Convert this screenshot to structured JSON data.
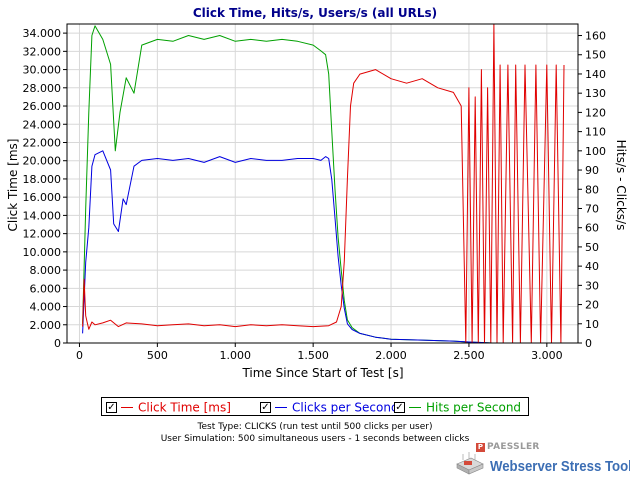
{
  "chart_data": {
    "type": "line",
    "title": "Click Time, Hits/s, Users/s (all URLs)",
    "xlabel": "Time Since Start of Test [s]",
    "ylabel_left": "Click Time [ms]",
    "ylabel_right": "Hits/s - Clicks/s",
    "xlim": [
      -80,
      3200
    ],
    "ylim_left": [
      0,
      35000
    ],
    "ylim_right": [
      0,
      166
    ],
    "x_ticks": [
      0,
      500,
      1000,
      1500,
      2000,
      2500,
      3000
    ],
    "x_tick_labels": [
      "0",
      "500",
      "1.000",
      "1.500",
      "2.000",
      "2.500",
      "3.000"
    ],
    "y_left_ticks": [
      0,
      2000,
      4000,
      6000,
      8000,
      10000,
      12000,
      14000,
      16000,
      18000,
      20000,
      22000,
      24000,
      26000,
      28000,
      30000,
      32000,
      34000
    ],
    "y_left_tick_labels": [
      "0",
      "2.000",
      "4.000",
      "6.000",
      "8.000",
      "10.000",
      "12.000",
      "14.000",
      "16.000",
      "18.000",
      "20.000",
      "22.000",
      "24.000",
      "26.000",
      "28.000",
      "30.000",
      "32.000",
      "34.000"
    ],
    "y_right_ticks": [
      0,
      10,
      20,
      30,
      40,
      50,
      60,
      70,
      80,
      90,
      100,
      110,
      120,
      130,
      140,
      150,
      160
    ],
    "y_right_tick_labels": [
      "0",
      "10",
      "20",
      "30",
      "40",
      "50",
      "60",
      "70",
      "80",
      "90",
      "100",
      "110",
      "120",
      "130",
      "140",
      "150",
      "160"
    ],
    "grid": true,
    "legend_position": "bottom",
    "series": [
      {
        "name": "Click Time [ms]",
        "axis": "left",
        "color": "#e00000",
        "x": [
          20,
          30,
          40,
          50,
          60,
          80,
          100,
          150,
          200,
          250,
          300,
          400,
          500,
          600,
          700,
          800,
          900,
          1000,
          1100,
          1200,
          1300,
          1400,
          1500,
          1600,
          1650,
          1680,
          1700,
          1720,
          1740,
          1760,
          1800,
          1900,
          2000,
          2100,
          2200,
          2300,
          2400,
          2450,
          2480,
          2500,
          2520,
          2540,
          2560,
          2580,
          2600,
          2620,
          2640,
          2660,
          2680,
          2700,
          2720,
          2750,
          2780,
          2800,
          2830,
          2860,
          2900,
          2930,
          2960,
          3000,
          3030,
          3060,
          3090,
          3110
        ],
        "values": [
          1800,
          7000,
          3000,
          2200,
          1500,
          2300,
          2000,
          2200,
          2500,
          1800,
          2200,
          2100,
          1900,
          2000,
          2100,
          1900,
          2000,
          1800,
          2000,
          1900,
          2000,
          1900,
          1800,
          1900,
          2300,
          4000,
          9000,
          18000,
          26000,
          28500,
          29500,
          30000,
          29000,
          28500,
          29000,
          28000,
          27500,
          26000,
          0,
          28000,
          0,
          27000,
          0,
          30000,
          0,
          28000,
          0,
          35000,
          0,
          30500,
          0,
          30500,
          0,
          30500,
          0,
          30500,
          0,
          30500,
          0,
          30500,
          0,
          30500,
          0,
          30500
        ]
      },
      {
        "name": "Clicks per Second",
        "axis": "right",
        "color": "#0000e0",
        "x": [
          20,
          40,
          60,
          80,
          100,
          150,
          200,
          220,
          250,
          280,
          300,
          350,
          400,
          500,
          600,
          700,
          800,
          900,
          1000,
          1100,
          1200,
          1300,
          1400,
          1500,
          1550,
          1580,
          1600,
          1620,
          1640,
          1660,
          1680,
          1700,
          1720,
          1750,
          1800,
          1900,
          2000,
          2200,
          2400,
          2500,
          2600,
          2650
        ],
        "values": [
          5,
          42,
          60,
          92,
          98,
          100,
          90,
          62,
          58,
          75,
          72,
          92,
          95,
          96,
          95,
          96,
          94,
          97,
          94,
          96,
          95,
          95,
          96,
          96,
          95,
          97,
          96,
          85,
          65,
          45,
          30,
          18,
          10,
          7,
          5,
          3,
          2,
          1.5,
          1,
          0.5,
          0.2,
          0
        ]
      },
      {
        "name": "Hits per Second",
        "axis": "right",
        "color": "#00a000",
        "x": [
          20,
          40,
          60,
          80,
          100,
          150,
          200,
          230,
          260,
          300,
          350,
          400,
          500,
          600,
          700,
          800,
          900,
          1000,
          1100,
          1200,
          1300,
          1400,
          1500,
          1550,
          1580,
          1600,
          1620,
          1640,
          1660,
          1680,
          1700,
          1720,
          1750,
          1800,
          1900,
          2000,
          2200,
          2400,
          2500,
          2600,
          2650
        ],
        "values": [
          10,
          70,
          120,
          160,
          165,
          158,
          145,
          100,
          120,
          138,
          130,
          155,
          158,
          157,
          160,
          158,
          160,
          157,
          158,
          157,
          158,
          157,
          155,
          152,
          150,
          140,
          110,
          80,
          55,
          38,
          22,
          12,
          8,
          5,
          3,
          2,
          1.5,
          1,
          0.5,
          0.2,
          0
        ]
      }
    ]
  },
  "legend": {
    "items": [
      {
        "label": "Click Time [ms]",
        "color": "#e00000",
        "checked": "✓"
      },
      {
        "label": "Clicks per Second",
        "color": "#0000e0",
        "checked": "✓"
      },
      {
        "label": "Hits per Second",
        "color": "#00a000",
        "checked": "✓"
      }
    ]
  },
  "info": {
    "line1": "Test Type: CLICKS (run test until 500 clicks per user)",
    "line2": "User Simulation: 500 simultaneous users - 1 seconds between clicks"
  },
  "brand": {
    "company": "PAESSLER",
    "product": "Webserver Stress Tool",
    "logo_icon": "stress-tool-logo-icon",
    "company_mark": "P"
  }
}
